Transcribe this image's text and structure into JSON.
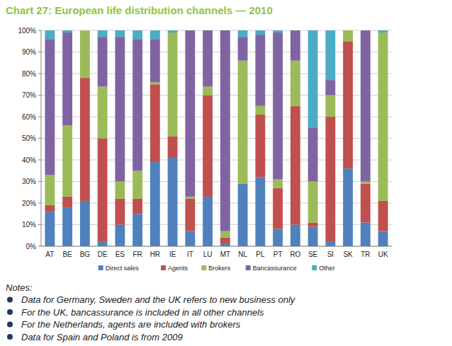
{
  "chart_data": {
    "type": "bar",
    "title": "Chart 27: European life distribution channels — 2010",
    "categories": [
      "AT",
      "BE",
      "BG",
      "DE",
      "ES",
      "FR",
      "HR",
      "IE",
      "IT",
      "LU",
      "MT",
      "NL",
      "PL",
      "PT",
      "RO",
      "SE",
      "SI",
      "SK",
      "TR",
      "UK"
    ],
    "series": [
      {
        "name": "Direct sales",
        "color": "#4f81bd",
        "values": [
          16,
          18,
          21,
          2,
          10,
          15,
          39,
          41,
          7,
          23,
          1,
          29,
          32,
          8,
          10,
          9,
          2,
          36,
          11,
          7
        ]
      },
      {
        "name": "Agents",
        "color": "#c0504d",
        "values": [
          3,
          5,
          57,
          48,
          12,
          7,
          36,
          10,
          15,
          47,
          3,
          0,
          29,
          19,
          55,
          2,
          58,
          59,
          18,
          14
        ]
      },
      {
        "name": "Brokers",
        "color": "#9bbb59",
        "values": [
          14,
          33,
          22,
          24,
          8,
          13,
          1,
          48,
          1,
          4,
          3,
          57,
          4,
          4,
          21,
          19,
          10,
          5,
          1,
          78
        ]
      },
      {
        "name": "Bancassurance",
        "color": "#8064a2",
        "values": [
          63,
          43,
          0,
          23,
          67,
          61,
          20,
          0,
          77,
          26,
          93,
          11,
          33,
          68,
          14,
          25,
          7,
          0,
          70,
          0
        ]
      },
      {
        "name": "Other",
        "color": "#4bacc6",
        "values": [
          4,
          1,
          0,
          3,
          3,
          4,
          4,
          1,
          0,
          0,
          0,
          3,
          2,
          1,
          0,
          45,
          23,
          0,
          0,
          1
        ]
      }
    ],
    "ylim": [
      0,
      100
    ],
    "yticks": [
      {
        "value": 0,
        "label": "0%"
      },
      {
        "value": 10,
        "label": "10%"
      },
      {
        "value": 20,
        "label": "20%"
      },
      {
        "value": 30,
        "label": "30%"
      },
      {
        "value": 40,
        "label": "40%"
      },
      {
        "value": 50,
        "label": "50%"
      },
      {
        "value": 60,
        "label": "60%"
      },
      {
        "value": 70,
        "label": "70%"
      },
      {
        "value": 80,
        "label": "80%"
      },
      {
        "value": 90,
        "label": "90%"
      },
      {
        "value": 100,
        "label": "100%"
      }
    ],
    "stacked": true,
    "grid": true,
    "legend": "bottom",
    "notes_title": "Notes:",
    "notes": [
      "Data for Germany, Sweden and the UK refers to new business only",
      "For the UK, bancassurance is included in all other channels",
      "For the Netherlands, agents are included with brokers",
      "Data for Spain and Poland is from 2009"
    ]
  }
}
